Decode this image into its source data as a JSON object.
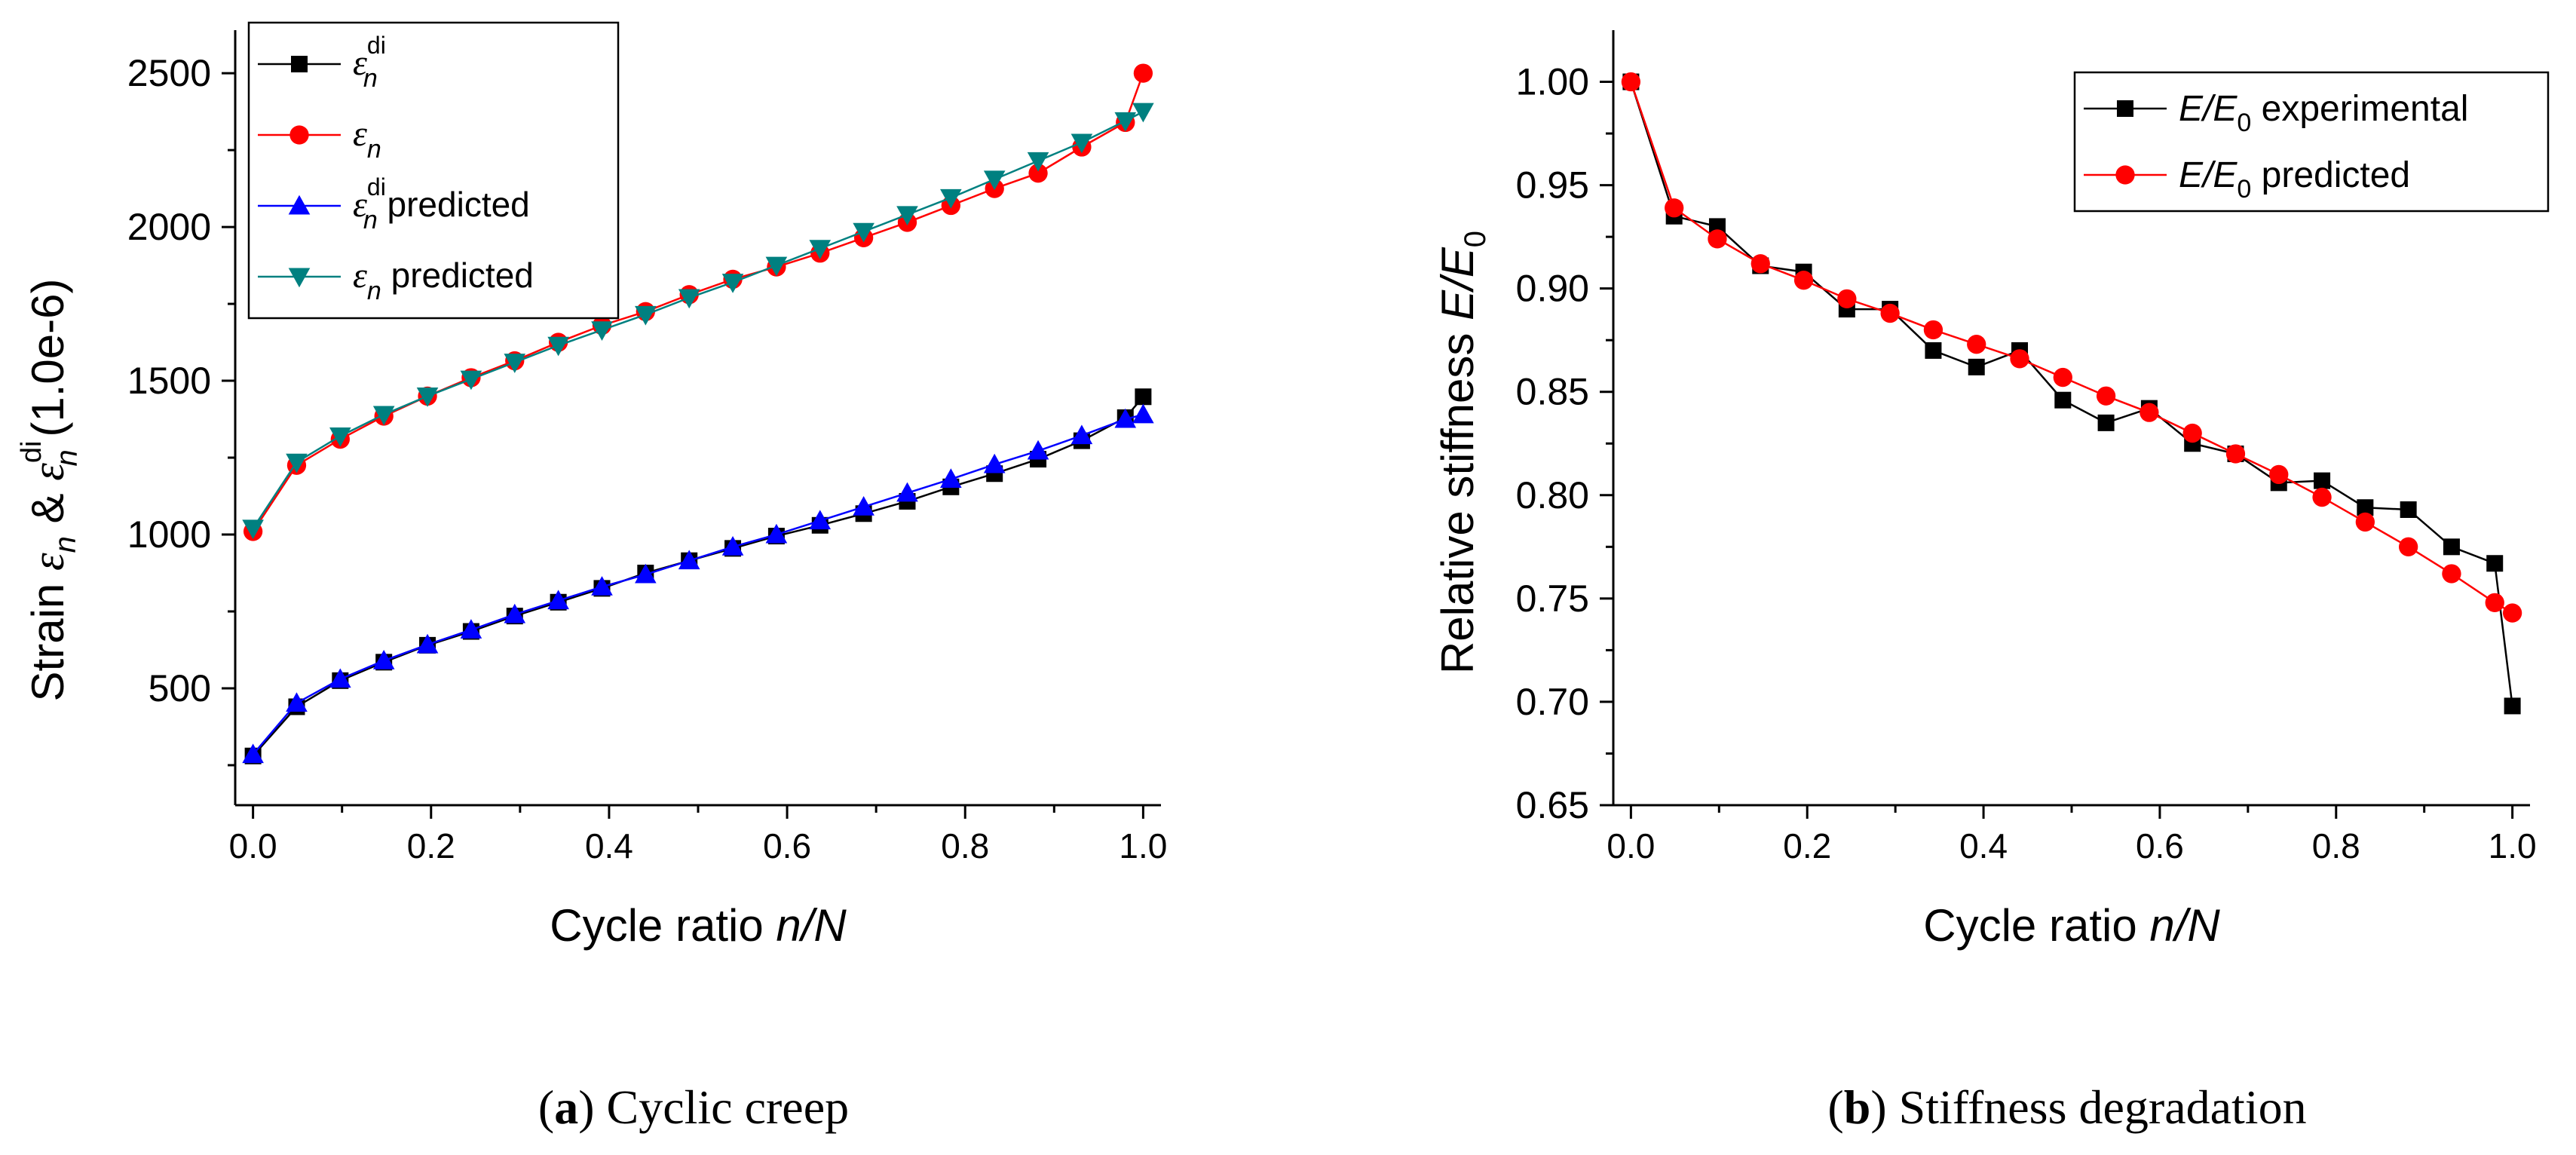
{
  "chart_data": [
    {
      "type": "line",
      "id": "a",
      "caption_label": "a",
      "caption_text": " Cyclic creep",
      "xlabel": {
        "main": "Cycle ratio ",
        "italic": "n/N"
      },
      "ylabel": {
        "prefix": "Strain ",
        "amp": " & ",
        "suffix": " (1.0e-6)"
      },
      "xlim": [
        -0.02,
        1.02
      ],
      "ylim": [
        120,
        2640
      ],
      "xticks": [
        0.0,
        0.2,
        0.4,
        0.6,
        0.8,
        1.0
      ],
      "xtick_labels": [
        "0.0",
        "0.2",
        "0.4",
        "0.6",
        "0.8",
        "1.0"
      ],
      "yticks": [
        500,
        1000,
        1500,
        2000,
        2500
      ],
      "ytick_labels": [
        "500",
        "1000",
        "1500",
        "2000",
        "2500"
      ],
      "legend_position": "top-left",
      "series": [
        {
          "name": "ε_n^di",
          "legend_suffix": "",
          "color": "#000000",
          "marker": "square",
          "x": [
            0,
            0.049,
            0.098,
            0.147,
            0.196,
            0.245,
            0.294,
            0.343,
            0.392,
            0.441,
            0.49,
            0.539,
            0.588,
            0.637,
            0.686,
            0.735,
            0.784,
            0.833,
            0.882,
            0.931,
            0.98,
            1.0
          ],
          "y": [
            280,
            440,
            525,
            585,
            640,
            685,
            735,
            780,
            825,
            875,
            915,
            955,
            995,
            1030,
            1068,
            1108,
            1155,
            1198,
            1245,
            1305,
            1380,
            1448
          ]
        },
        {
          "name": "ε_n",
          "legend_suffix": "",
          "color": "#ff0000",
          "marker": "circle",
          "x": [
            0,
            0.049,
            0.098,
            0.147,
            0.196,
            0.245,
            0.294,
            0.343,
            0.392,
            0.441,
            0.49,
            0.539,
            0.588,
            0.637,
            0.686,
            0.735,
            0.784,
            0.833,
            0.882,
            0.931,
            0.98,
            1.0
          ],
          "y": [
            1010,
            1225,
            1310,
            1385,
            1450,
            1510,
            1565,
            1625,
            1680,
            1725,
            1780,
            1830,
            1870,
            1915,
            1965,
            2015,
            2070,
            2125,
            2175,
            2260,
            2340,
            2500
          ]
        },
        {
          "name": "ε_n^di predicted",
          "legend_suffix": " predicted",
          "color": "#0000ff",
          "marker": "triangle-up",
          "x": [
            0,
            0.049,
            0.098,
            0.147,
            0.196,
            0.245,
            0.294,
            0.343,
            0.392,
            0.441,
            0.49,
            0.539,
            0.588,
            0.637,
            0.686,
            0.735,
            0.784,
            0.833,
            0.882,
            0.931,
            0.98,
            1.0
          ],
          "y": [
            285,
            452,
            530,
            590,
            642,
            690,
            740,
            785,
            830,
            870,
            915,
            960,
            1000,
            1045,
            1090,
            1135,
            1180,
            1228,
            1272,
            1322,
            1375,
            1390
          ]
        },
        {
          "name": "ε_n predicted",
          "legend_suffix": " predicted",
          "color": "#008080",
          "marker": "triangle-down",
          "x": [
            0,
            0.049,
            0.098,
            0.147,
            0.196,
            0.245,
            0.294,
            0.343,
            0.392,
            0.441,
            0.49,
            0.539,
            0.588,
            0.637,
            0.686,
            0.735,
            0.784,
            0.833,
            0.882,
            0.931,
            0.98,
            1.0
          ],
          "y": [
            1020,
            1235,
            1320,
            1390,
            1450,
            1505,
            1560,
            1615,
            1665,
            1715,
            1770,
            1820,
            1875,
            1930,
            1985,
            2040,
            2095,
            2155,
            2215,
            2275,
            2345,
            2375
          ]
        }
      ]
    },
    {
      "type": "line",
      "id": "b",
      "caption_label": "b",
      "caption_text": " Stiffness degradation",
      "xlabel": {
        "main": "Cycle ratio ",
        "italic": "n/N"
      },
      "ylabel": {
        "prefix": "Relative stiffness ",
        "ratio": "E/E",
        "sub": "0"
      },
      "xlim": [
        -0.02,
        1.02
      ],
      "ylim": [
        0.65,
        1.025
      ],
      "xticks": [
        0.0,
        0.2,
        0.4,
        0.6,
        0.8,
        1.0
      ],
      "xtick_labels": [
        "0.0",
        "0.2",
        "0.4",
        "0.6",
        "0.8",
        "1.0"
      ],
      "yticks": [
        0.65,
        0.7,
        0.75,
        0.8,
        0.85,
        0.9,
        0.95,
        1.0
      ],
      "ytick_labels": [
        "0.65",
        "0.70",
        "0.75",
        "0.80",
        "0.85",
        "0.90",
        "0.95",
        "1.00"
      ],
      "legend_position": "top-right",
      "series": [
        {
          "name": "E/E0 experimental",
          "legend_ratio": "E/E",
          "legend_sub": "0",
          "legend_suffix": " experimental",
          "color": "#000000",
          "marker": "square",
          "x": [
            0,
            0.049,
            0.098,
            0.147,
            0.196,
            0.245,
            0.294,
            0.343,
            0.392,
            0.441,
            0.49,
            0.539,
            0.588,
            0.637,
            0.686,
            0.735,
            0.784,
            0.833,
            0.882,
            0.931,
            0.98,
            1.0
          ],
          "y": [
            1.0,
            0.935,
            0.93,
            0.911,
            0.908,
            0.89,
            0.89,
            0.87,
            0.862,
            0.87,
            0.846,
            0.835,
            0.842,
            0.825,
            0.82,
            0.806,
            0.807,
            0.794,
            0.793,
            0.775,
            0.767,
            0.698
          ]
        },
        {
          "name": "E/E0 predicted",
          "legend_ratio": "E/E",
          "legend_sub": "0",
          "legend_suffix": " predicted",
          "color": "#ff0000",
          "marker": "circle",
          "x": [
            0,
            0.049,
            0.098,
            0.147,
            0.196,
            0.245,
            0.294,
            0.343,
            0.392,
            0.441,
            0.49,
            0.539,
            0.588,
            0.637,
            0.686,
            0.735,
            0.784,
            0.833,
            0.882,
            0.931,
            0.98,
            1.0
          ],
          "y": [
            1.0,
            0.939,
            0.924,
            0.912,
            0.904,
            0.895,
            0.888,
            0.88,
            0.873,
            0.866,
            0.857,
            0.848,
            0.84,
            0.83,
            0.82,
            0.81,
            0.799,
            0.787,
            0.775,
            0.762,
            0.748,
            0.743
          ]
        }
      ]
    }
  ]
}
